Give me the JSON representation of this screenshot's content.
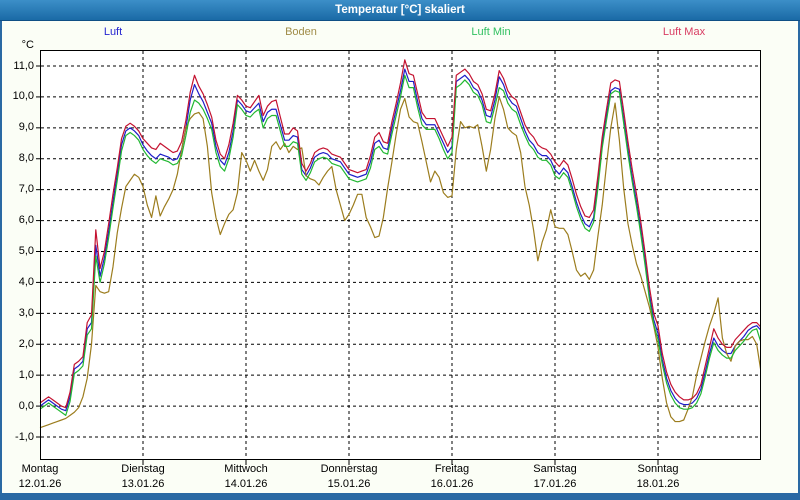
{
  "window": {
    "title": "Temperatur [°C] skaliert"
  },
  "legend": {
    "items": [
      {
        "label": "Luft",
        "color": "#2424d0"
      },
      {
        "label": "Boden",
        "color": "#a08c48"
      },
      {
        "label": "Luft Min",
        "color": "#30c060"
      },
      {
        "label": "Luft Max",
        "color": "#d83c62"
      }
    ]
  },
  "chart_data": {
    "type": "line",
    "title": "Temperatur [°C] skaliert",
    "y_unit": "°C",
    "y_tick_labels": [
      "11,0",
      "10,0",
      "9,0",
      "8,0",
      "7,0",
      "6,0",
      "5,0",
      "4,0",
      "3,0",
      "2,0",
      "1,0",
      "0,0",
      "-1,0"
    ],
    "y_tick_values": [
      11,
      10,
      9,
      8,
      7,
      6,
      5,
      4,
      3,
      2,
      1,
      0,
      -1
    ],
    "ylim": [
      -1.75,
      11.5
    ],
    "grid": "dashed",
    "legend_position": "top",
    "x_axis": {
      "days": [
        {
          "name": "Montag",
          "date": "12.01.26"
        },
        {
          "name": "Dienstag",
          "date": "13.01.26"
        },
        {
          "name": "Mittwoch",
          "date": "14.01.26"
        },
        {
          "name": "Donnerstag",
          "date": "15.01.26"
        },
        {
          "name": "Freitag",
          "date": "16.01.26"
        },
        {
          "name": "Samstag",
          "date": "17.01.26"
        },
        {
          "name": "Sonntag",
          "date": "18.01.26"
        }
      ],
      "total_hours": 168,
      "sample_interval_hours": 1
    },
    "series": [
      {
        "name": "Luft",
        "color": "#1e1ec8",
        "values": [
          0.0,
          0.1,
          0.2,
          0.1,
          0.0,
          -0.1,
          -0.15,
          0.3,
          1.2,
          1.3,
          1.45,
          2.5,
          2.7,
          5.2,
          4.2,
          4.8,
          5.65,
          6.6,
          7.5,
          8.45,
          8.9,
          9.0,
          8.9,
          8.75,
          8.45,
          8.25,
          8.1,
          8.0,
          8.15,
          8.1,
          8.05,
          7.95,
          8.0,
          8.3,
          9.0,
          9.9,
          10.4,
          10.1,
          9.85,
          9.5,
          9.15,
          8.4,
          7.95,
          7.8,
          8.2,
          8.9,
          9.9,
          9.75,
          9.55,
          9.5,
          9.65,
          9.8,
          9.2,
          9.5,
          9.6,
          9.6,
          9.1,
          8.6,
          8.6,
          8.75,
          8.7,
          7.65,
          7.45,
          7.7,
          8.05,
          8.15,
          8.2,
          8.15,
          8.0,
          7.95,
          7.9,
          7.7,
          7.5,
          7.45,
          7.4,
          7.45,
          7.5,
          7.9,
          8.5,
          8.6,
          8.35,
          8.3,
          9.0,
          9.6,
          10.2,
          10.9,
          10.5,
          10.5,
          9.85,
          9.3,
          9.1,
          9.1,
          9.1,
          8.8,
          8.5,
          8.2,
          8.4,
          10.5,
          10.6,
          10.7,
          10.55,
          10.3,
          10.2,
          9.9,
          9.4,
          9.35,
          9.9,
          10.65,
          10.4,
          10.0,
          9.8,
          9.7,
          9.3,
          8.9,
          8.6,
          8.45,
          8.2,
          8.1,
          8.1,
          7.95,
          7.65,
          7.5,
          7.7,
          7.55,
          7.1,
          6.6,
          6.2,
          5.9,
          5.8,
          6.1,
          7.2,
          8.5,
          9.4,
          10.2,
          10.3,
          10.25,
          9.3,
          8.3,
          7.4,
          6.6,
          5.7,
          4.7,
          3.6,
          2.8,
          2.35,
          1.5,
          0.9,
          0.5,
          0.25,
          0.1,
          0.05,
          0.05,
          0.1,
          0.25,
          0.55,
          1.1,
          1.7,
          2.2,
          1.95,
          1.8,
          1.7,
          1.7,
          1.95,
          2.1,
          2.25,
          2.45,
          2.55,
          2.6,
          2.45
        ]
      },
      {
        "name": "Boden",
        "color": "#9c7d1e",
        "values": [
          -0.7,
          -0.65,
          -0.6,
          -0.55,
          -0.5,
          -0.45,
          -0.4,
          -0.3,
          -0.2,
          -0.05,
          0.3,
          0.9,
          2.0,
          3.9,
          3.7,
          3.65,
          3.7,
          4.5,
          5.6,
          6.4,
          7.1,
          7.3,
          7.5,
          7.4,
          7.1,
          6.5,
          6.1,
          6.8,
          6.15,
          6.45,
          6.7,
          7.0,
          7.5,
          8.3,
          9.0,
          9.3,
          9.45,
          9.5,
          9.3,
          8.4,
          6.9,
          6.1,
          5.55,
          5.9,
          6.2,
          6.35,
          6.9,
          8.2,
          7.95,
          7.6,
          7.95,
          7.6,
          7.3,
          7.65,
          8.4,
          8.55,
          8.3,
          8.5,
          8.2,
          8.4,
          8.3,
          8.35,
          7.45,
          7.35,
          7.3,
          7.15,
          7.4,
          7.6,
          7.75,
          7.0,
          6.5,
          6.0,
          6.2,
          6.5,
          6.85,
          6.85,
          6.1,
          5.8,
          5.45,
          5.5,
          6.1,
          7.05,
          7.9,
          8.8,
          9.6,
          9.95,
          9.35,
          9.2,
          9.15,
          8.55,
          7.9,
          7.25,
          7.6,
          7.4,
          6.9,
          6.75,
          6.8,
          8.3,
          9.2,
          9.0,
          9.05,
          9.0,
          9.1,
          8.4,
          7.6,
          8.3,
          9.3,
          10.0,
          9.6,
          9.0,
          8.85,
          8.75,
          8.2,
          7.1,
          6.5,
          5.7,
          4.7,
          5.3,
          5.7,
          6.35,
          5.8,
          5.75,
          5.75,
          5.55,
          5.0,
          4.4,
          4.2,
          4.3,
          4.1,
          4.4,
          5.5,
          6.5,
          7.8,
          9.0,
          9.8,
          8.6,
          7.05,
          5.9,
          5.2,
          4.6,
          4.2,
          3.7,
          3.2,
          2.6,
          1.9,
          0.9,
          0.1,
          -0.35,
          -0.5,
          -0.5,
          -0.45,
          -0.1,
          0.3,
          1.0,
          1.55,
          2.1,
          2.6,
          3.0,
          3.5,
          2.2,
          1.7,
          1.45,
          1.95,
          2.1,
          2.15,
          2.15,
          2.25,
          2.0,
          1.1
        ]
      },
      {
        "name": "Luft Min",
        "color": "#22b832",
        "values": [
          -0.1,
          0.0,
          0.1,
          0.0,
          -0.1,
          -0.2,
          -0.3,
          0.15,
          1.05,
          1.15,
          1.3,
          2.3,
          2.5,
          4.85,
          4.0,
          4.6,
          5.45,
          6.4,
          7.3,
          8.25,
          8.75,
          8.85,
          8.75,
          8.6,
          8.3,
          8.1,
          7.95,
          7.85,
          8.0,
          7.95,
          7.9,
          7.8,
          7.85,
          8.1,
          8.75,
          9.5,
          9.9,
          9.8,
          9.6,
          9.3,
          8.95,
          8.2,
          7.75,
          7.6,
          8.0,
          8.7,
          9.75,
          9.6,
          9.4,
          9.35,
          9.5,
          9.6,
          9.0,
          9.3,
          9.4,
          9.4,
          8.9,
          8.4,
          8.4,
          8.55,
          8.5,
          7.5,
          7.3,
          7.55,
          7.9,
          8.0,
          8.05,
          8.0,
          7.85,
          7.8,
          7.75,
          7.55,
          7.35,
          7.3,
          7.25,
          7.3,
          7.35,
          7.7,
          8.3,
          8.4,
          8.2,
          8.15,
          8.8,
          9.4,
          10.0,
          10.7,
          10.3,
          10.3,
          9.65,
          9.1,
          8.95,
          8.95,
          8.95,
          8.65,
          8.3,
          8.0,
          8.2,
          10.3,
          10.4,
          10.55,
          10.4,
          10.15,
          10.05,
          9.75,
          9.2,
          9.15,
          9.7,
          10.3,
          10.2,
          9.8,
          9.6,
          9.5,
          9.1,
          8.75,
          8.45,
          8.3,
          8.05,
          7.95,
          7.95,
          7.8,
          7.45,
          7.35,
          7.55,
          7.4,
          6.95,
          6.45,
          6.05,
          5.75,
          5.65,
          5.95,
          7.05,
          8.35,
          9.25,
          10.1,
          10.2,
          10.15,
          9.15,
          8.15,
          7.25,
          6.45,
          5.55,
          4.55,
          3.45,
          2.65,
          2.15,
          1.35,
          0.75,
          0.35,
          0.1,
          -0.05,
          -0.1,
          -0.1,
          -0.05,
          0.1,
          0.4,
          0.95,
          1.55,
          2.05,
          1.8,
          1.65,
          1.55,
          1.55,
          1.8,
          1.95,
          2.1,
          2.3,
          2.45,
          2.5,
          2.05
        ]
      },
      {
        "name": "Luft Max",
        "color": "#c41230",
        "values": [
          0.1,
          0.2,
          0.3,
          0.2,
          0.1,
          0.0,
          -0.05,
          0.45,
          1.35,
          1.45,
          1.6,
          2.7,
          2.95,
          5.7,
          4.45,
          5.0,
          5.9,
          6.85,
          7.7,
          8.65,
          9.05,
          9.15,
          9.05,
          8.9,
          8.65,
          8.5,
          8.35,
          8.3,
          8.5,
          8.4,
          8.3,
          8.2,
          8.25,
          8.55,
          9.25,
          10.15,
          10.7,
          10.35,
          10.1,
          9.75,
          9.35,
          8.6,
          8.15,
          8.0,
          8.45,
          9.15,
          10.05,
          9.9,
          9.7,
          9.65,
          9.85,
          10.05,
          9.4,
          9.7,
          9.85,
          9.9,
          9.35,
          8.8,
          8.8,
          9.0,
          8.9,
          7.85,
          7.6,
          7.85,
          8.2,
          8.3,
          8.35,
          8.3,
          8.15,
          8.1,
          8.05,
          7.85,
          7.65,
          7.6,
          7.55,
          7.6,
          7.65,
          8.1,
          8.7,
          8.85,
          8.55,
          8.5,
          9.2,
          9.8,
          10.45,
          11.2,
          10.75,
          10.7,
          10.1,
          9.5,
          9.3,
          9.3,
          9.3,
          9.0,
          8.7,
          8.4,
          8.7,
          10.7,
          10.8,
          10.9,
          10.75,
          10.5,
          10.4,
          10.1,
          9.6,
          9.55,
          10.1,
          10.85,
          10.6,
          10.2,
          10.0,
          9.9,
          9.5,
          9.1,
          8.85,
          8.7,
          8.45,
          8.35,
          8.3,
          8.15,
          7.9,
          7.75,
          7.95,
          7.8,
          7.35,
          6.85,
          6.45,
          6.15,
          6.1,
          6.35,
          7.45,
          8.7,
          9.6,
          10.45,
          10.55,
          10.5,
          9.55,
          8.55,
          7.65,
          6.85,
          5.95,
          4.95,
          3.85,
          3.0,
          2.6,
          1.7,
          1.1,
          0.7,
          0.45,
          0.3,
          0.2,
          0.2,
          0.25,
          0.4,
          0.7,
          1.3,
          1.9,
          2.5,
          2.2,
          2.0,
          1.9,
          1.9,
          2.15,
          2.3,
          2.45,
          2.6,
          2.7,
          2.7,
          2.55
        ]
      }
    ]
  }
}
